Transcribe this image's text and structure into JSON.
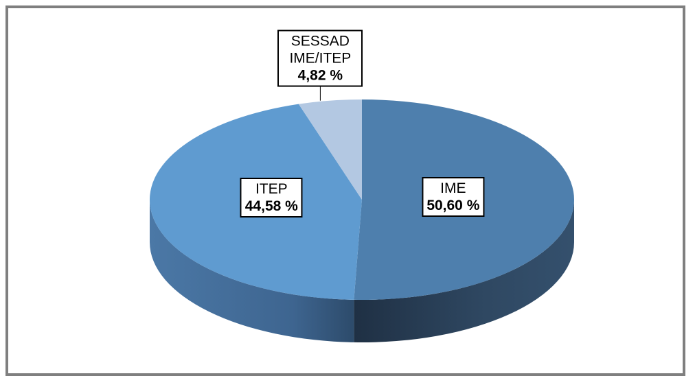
{
  "chart_data": {
    "type": "pie",
    "categories": [
      "IME",
      "ITEP",
      "SESSAD IME/ITEP"
    ],
    "values": [
      50.6,
      44.58,
      4.82
    ],
    "value_labels": [
      "50,60 %",
      "44,58 %",
      "4,82 %"
    ],
    "colors": [
      "#4e7fad",
      "#5f9bd0",
      "#b3c8e2"
    ]
  }
}
